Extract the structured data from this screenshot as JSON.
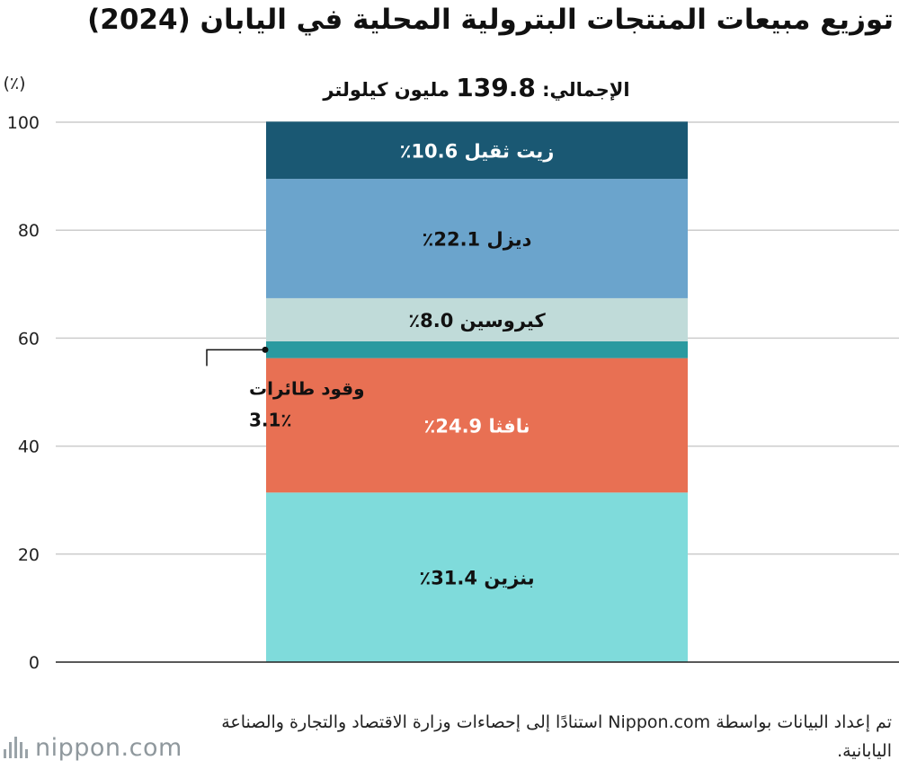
{
  "title": "توزيع مبيعات المنتجات البترولية المحلية في اليابان (2024)",
  "total_label": "الإجمالي:",
  "total_value": "139.8",
  "total_unit": "مليون كيلولتر",
  "unit_label": "(٪)",
  "source": "تم إعداد البيانات بواسطة Nippon.com استنادًا إلى إحصاءات وزارة الاقتصاد والتجارة والصناعة اليابانية.",
  "logo": "nippon.com",
  "chart_data": {
    "type": "bar",
    "stacked": true,
    "ylim": [
      0,
      100
    ],
    "yticks": [
      0,
      20,
      40,
      60,
      80,
      100
    ],
    "grid": true,
    "series": [
      {
        "name": "بنزين",
        "value": 31.4,
        "label": "بنزين 31.4٪",
        "color": "#7fdbdb",
        "text_color": "#111111"
      },
      {
        "name": "نافثا",
        "value": 24.9,
        "label": "نافثا 24.9٪",
        "color": "#e87053",
        "text_color": "#ffffff"
      },
      {
        "name": "وقود طائرات",
        "value": 3.1,
        "label_line1": "وقود طائرات",
        "label_line2": "3.1٪",
        "color": "#2a9aa0",
        "outside": true
      },
      {
        "name": "كيروسين",
        "value": 8.0,
        "label": "كيروسين 8.0٪",
        "color": "#c0dbd9",
        "text_color": "#111111"
      },
      {
        "name": "ديزل",
        "value": 22.1,
        "label": "ديزل 22.1٪",
        "color": "#6ba4cc",
        "text_color": "#111111"
      },
      {
        "name": "زيت ثقيل",
        "value": 10.6,
        "label": "زيت ثقيل 10.6٪",
        "color": "#1a5873",
        "text_color": "#ffffff"
      }
    ]
  }
}
